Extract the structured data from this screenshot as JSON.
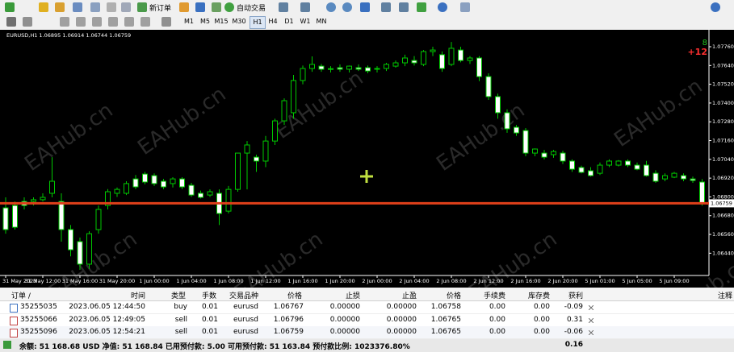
{
  "toolbar": {
    "new_order": "新订单",
    "auto_trading": "自动交易",
    "timeframes": [
      "M1",
      "M5",
      "M15",
      "M30",
      "H1",
      "H4",
      "D1",
      "W1",
      "MN"
    ],
    "active_timeframe": "H1"
  },
  "watermark": "EAHub.cn",
  "chart_data": {
    "type": "candlestick",
    "header": "EURUSD,H1  1.06895 1.06914 1.06744 1.06759",
    "corner_labels": [
      "8",
      "+12"
    ],
    "up_color": "#00c800",
    "down_color": "#ffffff",
    "price_line_color": "#e0401a",
    "categories": [
      "31 May 2023",
      null,
      null,
      null,
      "31 May 12:00",
      null,
      null,
      null,
      "31 May 16:00",
      null,
      null,
      null,
      "31 May 20:00",
      null,
      null,
      null,
      "1 Jun 00:00",
      null,
      null,
      null,
      "1 Jun 04:00",
      null,
      null,
      null,
      "1 Jun 08:00",
      null,
      null,
      null,
      "1 Jun 12:00",
      null,
      null,
      null,
      "1 Jun 16:00",
      null,
      null,
      null,
      "1 Jun 20:00",
      null,
      null,
      null,
      "2 Jun 00:00",
      null,
      null,
      null,
      "2 Jun 04:00",
      null,
      null,
      null,
      "2 Jun 08:00",
      null,
      null,
      null,
      "2 Jun 12:00",
      null,
      null,
      null,
      "2 Jun 16:00",
      null,
      null,
      null,
      "2 Jun 20:00",
      null,
      null,
      null,
      "5 Jun 01:00",
      null,
      null,
      null,
      "5 Jun 05:00",
      null,
      null,
      null,
      "5 Jun 09:00",
      null,
      null,
      null
    ],
    "open": [
      1.0673,
      1.06745,
      1.06771,
      1.06771,
      1.06782,
      1.06823,
      1.06771,
      1.06591,
      1.06514,
      1.0637,
      1.06591,
      1.06745,
      1.06823,
      1.06823,
      1.06915,
      1.06946,
      1.06936,
      1.069,
      1.06885,
      1.06915,
      1.06874,
      1.06823,
      1.06812,
      1.06823,
      1.06709,
      1.06848,
      1.0708,
      1.07054,
      1.07029,
      1.07157,
      1.07286,
      1.07338,
      1.07544,
      1.07621,
      1.07636,
      1.07616,
      1.07626,
      1.07616,
      1.07626,
      1.07626,
      1.07616,
      1.07621,
      1.07636,
      1.07657,
      1.07672,
      1.07647,
      1.07729,
      1.07709,
      1.07647,
      1.07739,
      1.07672,
      1.07688,
      1.07569,
      1.07441,
      1.07338,
      1.07245,
      1.07224,
      1.0708,
      1.0708,
      1.0707,
      1.0708,
      1.07029,
      1.06988,
      1.06967,
      1.06951,
      1.07003,
      1.07003,
      1.07029,
      1.07003,
      1.07003,
      1.06951,
      1.06915,
      1.06926,
      1.06936,
      1.06915,
      1.06895
    ],
    "high": [
      1.06797,
      1.06771,
      1.06797,
      1.06797,
      1.06823,
      1.07054,
      1.06823,
      1.0662,
      1.0654,
      1.0658,
      1.06745,
      1.0685,
      1.0686,
      1.069,
      1.0694,
      1.0696,
      1.0695,
      1.06915,
      1.06926,
      1.06926,
      1.0689,
      1.0684,
      1.06848,
      1.06848,
      1.0687,
      1.0708,
      1.07157,
      1.0707,
      1.0719,
      1.073,
      1.0743,
      1.0758,
      1.0764,
      1.07698,
      1.0765,
      1.07636,
      1.07647,
      1.0764,
      1.07647,
      1.0764,
      1.07636,
      1.07657,
      1.07672,
      1.07709,
      1.077,
      1.07739,
      1.0776,
      1.0773,
      1.0779,
      1.0776,
      1.077,
      1.077,
      1.0759,
      1.0746,
      1.0736,
      1.0726,
      1.0724,
      1.0711,
      1.071,
      1.071,
      1.07095,
      1.0704,
      1.07,
      1.0699,
      1.0702,
      1.0704,
      1.07035,
      1.0704,
      1.0702,
      1.0703,
      1.0697,
      1.0695,
      1.0696,
      1.0695,
      1.0693,
      1.06914
    ],
    "low": [
      1.06565,
      1.06591,
      1.0672,
      1.06745,
      1.06771,
      1.06797,
      1.06514,
      1.0642,
      1.06334,
      1.0634,
      1.06565,
      1.0672,
      1.068,
      1.06812,
      1.0685,
      1.0688,
      1.0687,
      1.0685,
      1.0686,
      1.0685,
      1.068,
      1.0679,
      1.068,
      1.0662,
      1.06694,
      1.06833,
      1.06848,
      1.0696,
      1.0699,
      1.07132,
      1.0726,
      1.073,
      1.0752,
      1.076,
      1.076,
      1.07595,
      1.076,
      1.07595,
      1.07605,
      1.0759,
      1.07595,
      1.07605,
      1.07626,
      1.07636,
      1.0764,
      1.07636,
      1.077,
      1.076,
      1.07636,
      1.0766,
      1.0765,
      1.0754,
      1.0742,
      1.073,
      1.0721,
      1.0719,
      1.0706,
      1.0706,
      1.0704,
      1.0705,
      1.0701,
      1.0696,
      1.0695,
      1.0693,
      1.0694,
      1.0699,
      1.06995,
      1.0699,
      1.0697,
      1.0693,
      1.0689,
      1.069,
      1.0692,
      1.069,
      1.0689,
      1.06744
    ],
    "close": [
      1.06591,
      1.06606,
      1.06745,
      1.06782,
      1.06797,
      1.069,
      1.06591,
      1.06462,
      1.0637,
      1.06565,
      1.0672,
      1.06833,
      1.06848,
      1.06885,
      1.06864,
      1.06895,
      1.06885,
      1.06864,
      1.06915,
      1.06864,
      1.06812,
      1.06797,
      1.06833,
      1.06694,
      1.06848,
      1.0708,
      1.07132,
      1.07029,
      1.07157,
      1.07286,
      1.07415,
      1.07544,
      1.07621,
      1.07647,
      1.07616,
      1.0762,
      1.07616,
      1.07636,
      1.07616,
      1.07605,
      1.07621,
      1.07647,
      1.07657,
      1.07688,
      1.07657,
      1.07729,
      1.07739,
      1.07621,
      1.0775,
      1.07672,
      1.07688,
      1.07569,
      1.07441,
      1.07338,
      1.07235,
      1.07209,
      1.0708,
      1.07106,
      1.07054,
      1.0709,
      1.07029,
      1.06977,
      1.06957,
      1.06936,
      1.07003,
      1.07029,
      1.07029,
      1.07003,
      1.06977,
      1.06936,
      1.069,
      1.06936,
      1.06951,
      1.06915,
      1.06905,
      1.06759
    ],
    "ylim": [
      1.0631,
      1.0781
    ],
    "yticks": [
      {
        "value": 1.0776,
        "label": "1.07760"
      },
      {
        "value": 1.0764,
        "label": "1.07640"
      },
      {
        "value": 1.0752,
        "label": "1.07520"
      },
      {
        "value": 1.074,
        "label": "1.07400"
      },
      {
        "value": 1.0728,
        "label": "1.07280"
      },
      {
        "value": 1.0716,
        "label": "1.07160"
      },
      {
        "value": 1.0704,
        "label": "1.07040"
      },
      {
        "value": 1.0692,
        "label": "1.06920"
      },
      {
        "value": 1.068,
        "label": "1.06800"
      },
      {
        "value": 1.0668,
        "label": "1.06680"
      },
      {
        "value": 1.0656,
        "label": "1.06560"
      },
      {
        "value": 1.0644,
        "label": "1.06440"
      }
    ]
  },
  "table": {
    "headers": [
      "订单 /",
      "时间",
      "类型",
      "手数",
      "交易品种",
      "价格",
      "止损",
      "止盈",
      "价格",
      "手续费",
      "库存费",
      "获利",
      "注释"
    ],
    "rows": [
      [
        "35255035",
        "2023.06.05 12:44:50",
        "buy",
        "0.01",
        "eurusd",
        "1.06767",
        "0.00000",
        "0.00000",
        "1.06758",
        "0.00",
        "0.00",
        "-0.09"
      ],
      [
        "35255066",
        "2023.06.05 12:49:05",
        "sell",
        "0.01",
        "eurusd",
        "1.06796",
        "0.00000",
        "0.00000",
        "1.06765",
        "0.00",
        "0.00",
        "0.31"
      ],
      [
        "35255096",
        "2023.06.05 12:54:21",
        "sell",
        "0.01",
        "eurusd",
        "1.06759",
        "0.00000",
        "0.00000",
        "1.06765",
        "0.00",
        "0.00",
        "-0.06"
      ]
    ],
    "footer": {
      "summary": "余额: 51 168.68 USD  净值: 51 168.84  已用预付款: 5.00  可用预付款: 51 163.84  预付款比例: 1023376.80%",
      "total": "0.16"
    }
  }
}
